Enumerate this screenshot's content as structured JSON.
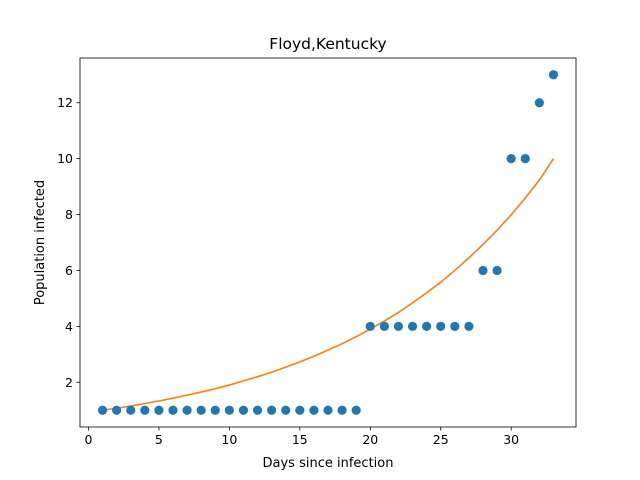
{
  "chart_data": {
    "type": "scatter",
    "title": "Floyd,Kentucky",
    "xlabel": "Days since infection",
    "ylabel": "Population infected",
    "xlim": [
      -0.6,
      34.6
    ],
    "ylim": [
      0.4,
      13.6
    ],
    "xticks": [
      0,
      5,
      10,
      15,
      20,
      25,
      30
    ],
    "yticks": [
      2,
      4,
      6,
      8,
      10,
      12
    ],
    "grid": false,
    "series": [
      {
        "kind": "scatter",
        "color": "#1f77b4",
        "x": [
          1,
          2,
          3,
          4,
          5,
          6,
          7,
          8,
          9,
          10,
          11,
          12,
          13,
          14,
          15,
          16,
          17,
          18,
          19,
          20,
          21,
          22,
          23,
          24,
          25,
          26,
          27,
          28,
          29,
          30,
          31,
          32,
          33
        ],
        "y": [
          1,
          1,
          1,
          1,
          1,
          1,
          1,
          1,
          1,
          1,
          1,
          1,
          1,
          1,
          1,
          1,
          1,
          1,
          1,
          4,
          4,
          4,
          4,
          4,
          4,
          4,
          4,
          6,
          6,
          10,
          10,
          12,
          13
        ]
      },
      {
        "kind": "line",
        "color": "#ff7f0e",
        "x": [
          1,
          2,
          3,
          4,
          5,
          6,
          7,
          8,
          9,
          10,
          11,
          12,
          13,
          14,
          15,
          16,
          17,
          18,
          19,
          20,
          21,
          22,
          23,
          24,
          25,
          26,
          27,
          28,
          29,
          30,
          31,
          32,
          33
        ],
        "y": [
          1.0,
          1.07,
          1.15,
          1.24,
          1.33,
          1.43,
          1.54,
          1.65,
          1.77,
          1.9,
          2.05,
          2.2,
          2.36,
          2.54,
          2.73,
          2.93,
          3.15,
          3.38,
          3.63,
          3.9,
          4.19,
          4.5,
          4.84,
          5.2,
          5.58,
          6.0,
          6.45,
          6.93,
          7.44,
          7.99,
          8.59,
          9.23,
          10.0
        ]
      }
    ]
  }
}
